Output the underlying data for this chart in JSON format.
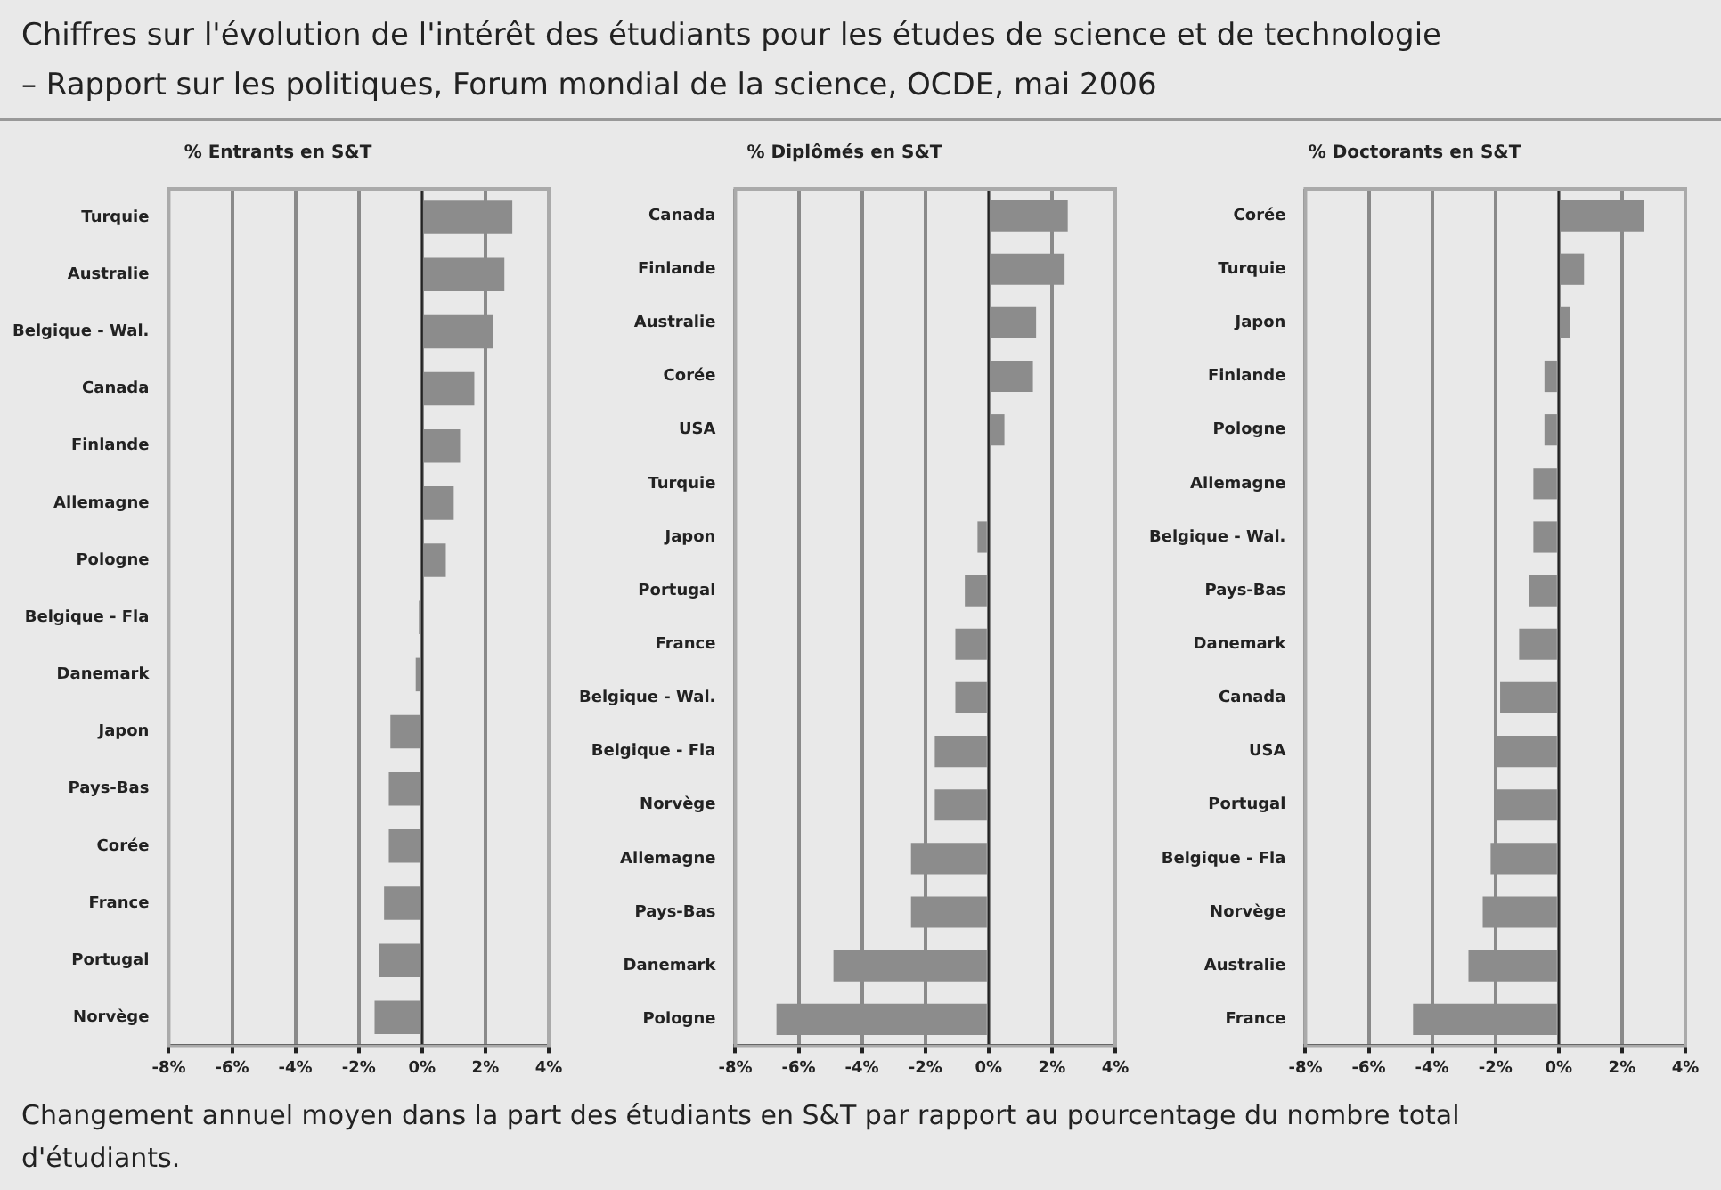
{
  "chart_data": [
    {
      "type": "bar",
      "orientation": "horizontal",
      "title": "% Entrants en S&T",
      "annotations": [
        "Chiffres sur l'évolution de l'intérêt des étudiants pour les études de science et de technologie",
        "– Rapport sur les politiques, Forum mondial de la science, OCDE, mai 2006"
      ],
      "categories": [
        "Turquie",
        "Australie",
        "Belgique - Wal.",
        "Canada",
        "Finlande",
        "Allemagne",
        "Pologne",
        "Belgique - Fla",
        "Danemark",
        "Japon",
        "Pays-Bas",
        "Corée",
        "France",
        "Portugal",
        "Norvège"
      ],
      "values": [
        2.85,
        2.6,
        2.25,
        1.65,
        1.2,
        1.0,
        0.75,
        -0.1,
        -0.2,
        -1.0,
        -1.05,
        -1.05,
        -1.2,
        -1.35,
        -1.5
      ],
      "color": "#8c8c8c",
      "xlim": [
        -8,
        4
      ],
      "xticks": [
        {
          "value": -8,
          "label": "-8%"
        },
        {
          "value": -6,
          "label": "-6%"
        },
        {
          "value": -4,
          "label": "-4%"
        },
        {
          "value": -2,
          "label": "-2%"
        },
        {
          "value": 0,
          "label": "0%"
        },
        {
          "value": 2,
          "label": "2%"
        },
        {
          "value": 4,
          "label": "4%"
        }
      ],
      "grid": "x",
      "legend": false
    },
    {
      "type": "bar",
      "orientation": "horizontal",
      "title": "% Diplômés en S&T",
      "categories": [
        "Canada",
        "Finlande",
        "Australie",
        "Corée",
        "USA",
        "Turquie",
        "Japon",
        "Portugal",
        "France",
        "Belgique - Wal.",
        "Belgique - Fla",
        "Norvège",
        "Allemagne",
        "Pays-Bas",
        "Danemark",
        "Pologne"
      ],
      "values": [
        2.5,
        2.4,
        1.5,
        1.4,
        0.5,
        0,
        -0.35,
        -0.75,
        -1.05,
        -1.05,
        -1.7,
        -1.7,
        -2.45,
        -2.45,
        -4.9,
        -6.7
      ],
      "color": "#8c8c8c",
      "xlim": [
        -8,
        4
      ],
      "xticks": [
        {
          "value": -8,
          "label": "-8%"
        },
        {
          "value": -6,
          "label": "-6%"
        },
        {
          "value": -4,
          "label": "-4%"
        },
        {
          "value": -2,
          "label": "-2%"
        },
        {
          "value": 0,
          "label": "0%"
        },
        {
          "value": 2,
          "label": "2%"
        },
        {
          "value": 4,
          "label": "4%"
        }
      ],
      "grid": "x",
      "legend": false
    },
    {
      "type": "bar",
      "orientation": "horizontal",
      "title": "% Doctorants en S&T",
      "annotations": [
        "Changement annuel moyen dans la part des étudiants en S&T par rapport au pourcentage du nombre total d'étudiants."
      ],
      "categories": [
        "Corée",
        "Turquie",
        "Japon",
        "Finlande",
        "Pologne",
        "Allemagne",
        "Belgique - Wal.",
        "Pays-Bas",
        "Danemark",
        "Canada",
        "USA",
        "Portugal",
        "Belgique - Fla",
        "Norvège",
        "Australie",
        "France"
      ],
      "values": [
        2.7,
        0.8,
        0.35,
        -0.45,
        -0.45,
        -0.8,
        -0.8,
        -0.95,
        -1.25,
        -1.85,
        -2.0,
        -2.0,
        -2.15,
        -2.4,
        -2.85,
        -4.6
      ],
      "color": "#8c8c8c",
      "xlim": [
        -8,
        4
      ],
      "xticks": [
        {
          "value": -8,
          "label": "-8%"
        },
        {
          "value": -6,
          "label": "-6%"
        },
        {
          "value": -4,
          "label": "-4%"
        },
        {
          "value": -2,
          "label": "-2%"
        },
        {
          "value": 0,
          "label": "0%"
        },
        {
          "value": 2,
          "label": "2%"
        },
        {
          "value": 4,
          "label": "4%"
        }
      ],
      "grid": "x",
      "legend": false
    }
  ]
}
